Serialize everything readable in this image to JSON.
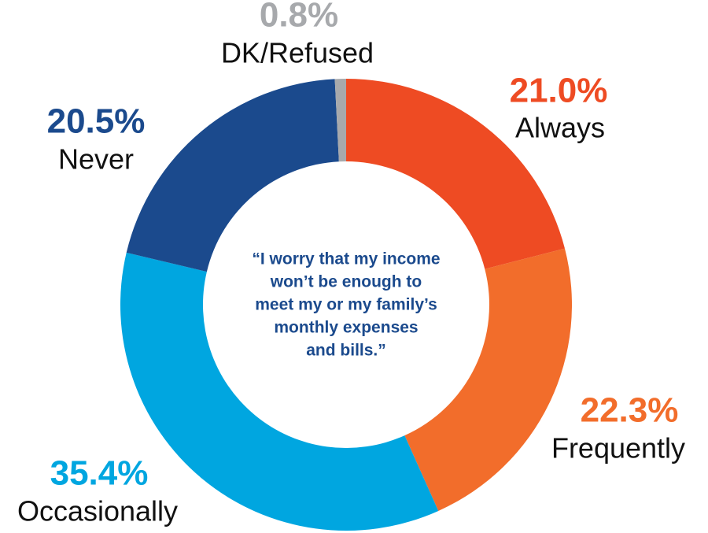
{
  "chart_data": {
    "type": "pie",
    "donut": true,
    "categories": [
      "Always",
      "Frequently",
      "Occasionally",
      "Never",
      "DK/Refused"
    ],
    "values": [
      21.0,
      22.3,
      35.4,
      20.5,
      0.8
    ],
    "value_labels": [
      "21.0%",
      "22.3%",
      "35.4%",
      "20.5%",
      "0.8%"
    ],
    "colors": [
      "#ee4b23",
      "#f26d2b",
      "#00a6e0",
      "#1b4a8d",
      "#a7a9ac"
    ],
    "center_text": [
      "“I worry that my income",
      "won’t be enough to",
      "meet my or my family’s",
      "monthly expenses",
      "and bills.”"
    ]
  }
}
